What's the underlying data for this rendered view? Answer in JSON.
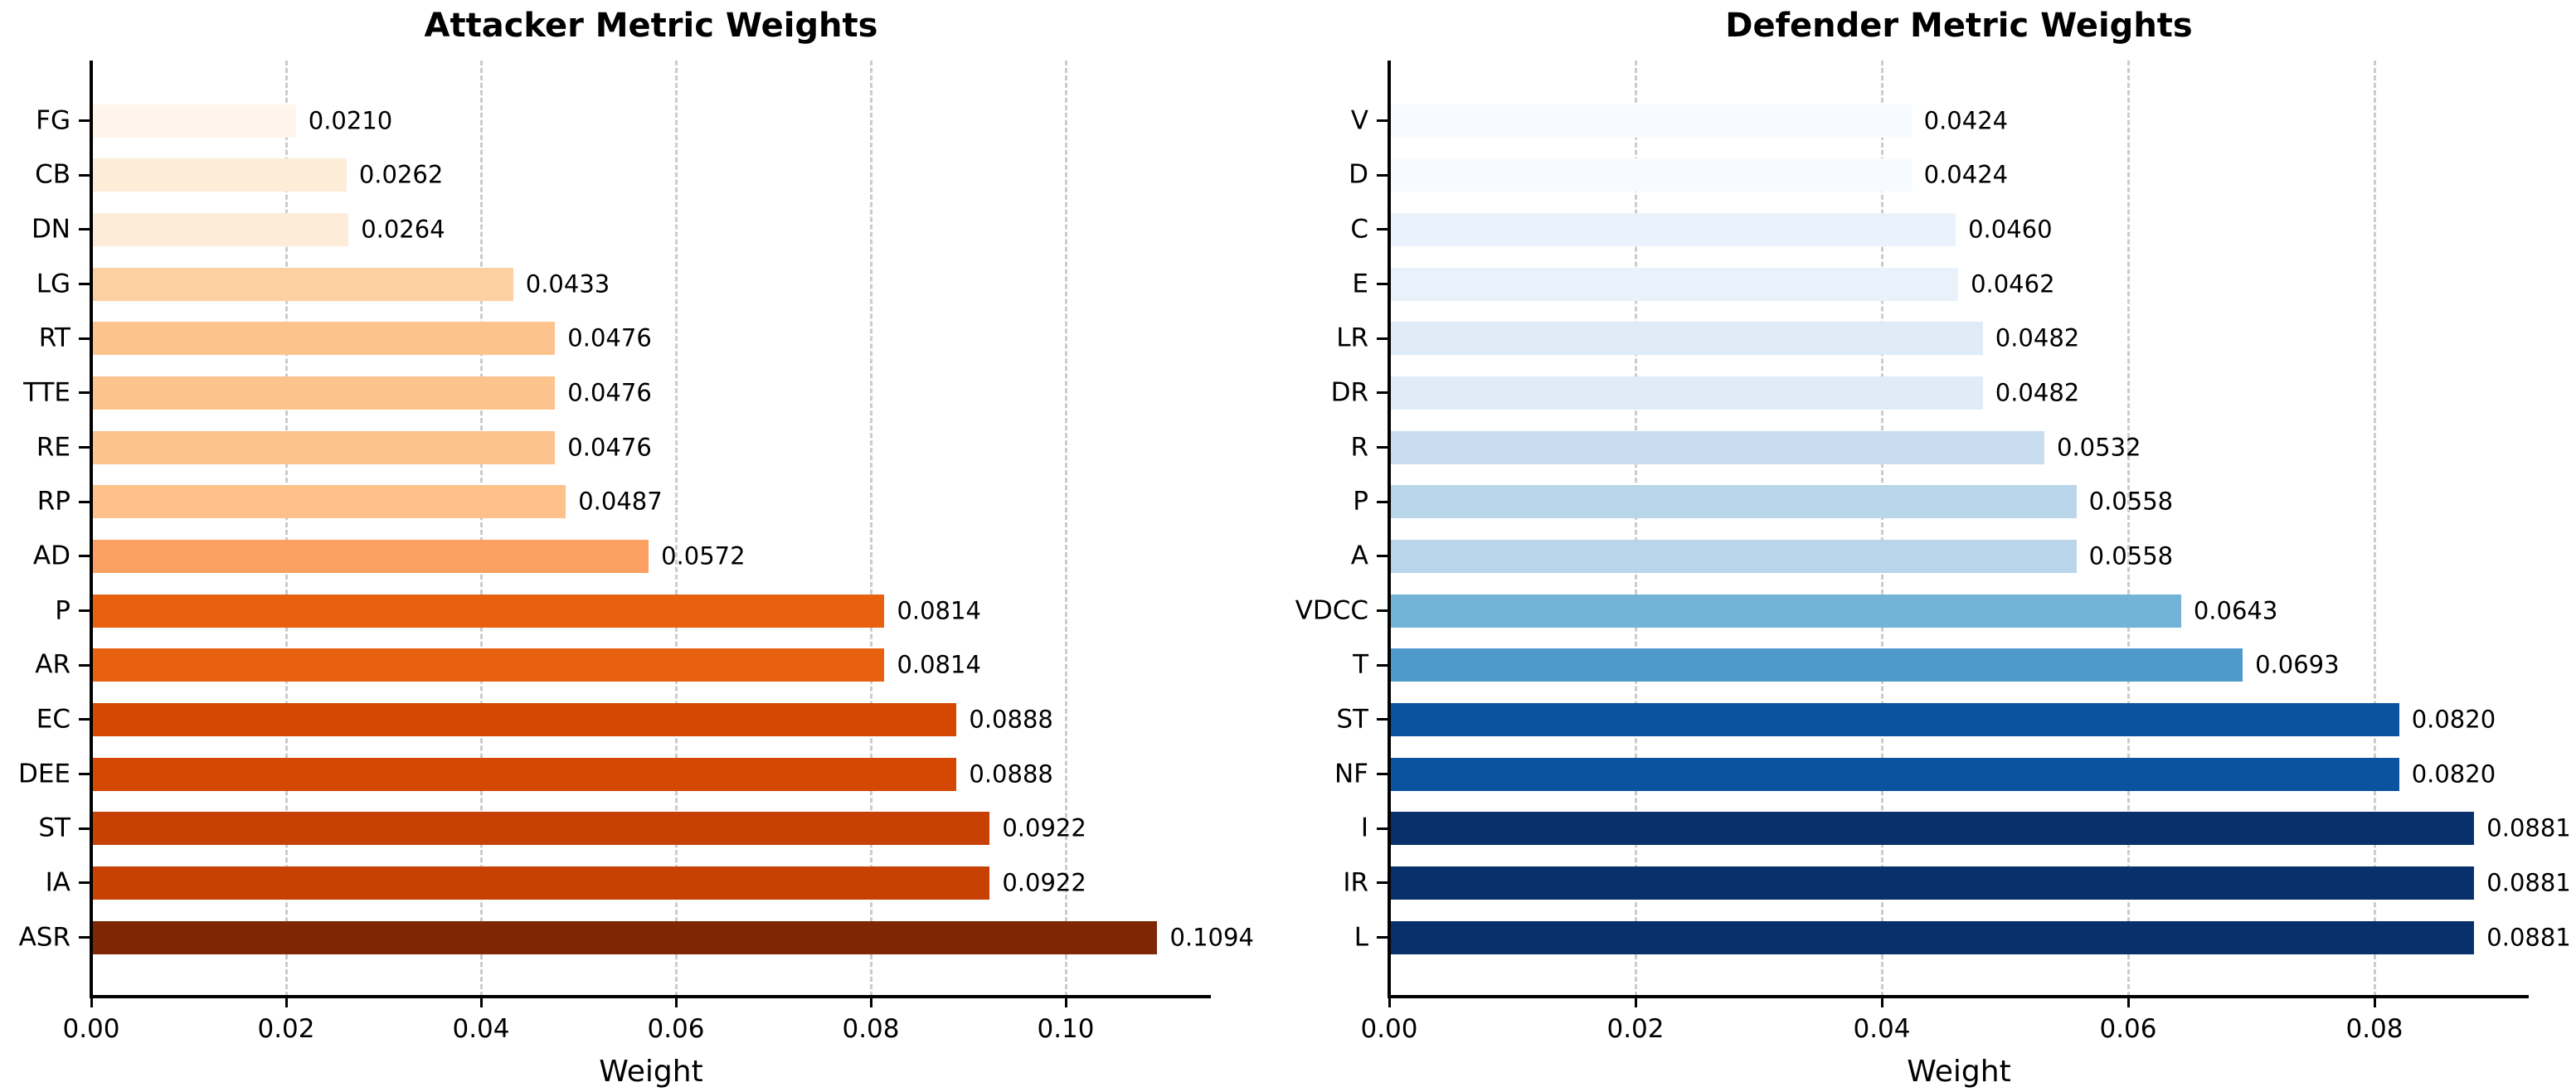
{
  "figure_background": "#ffffff",
  "text_color": "#000000",
  "gridline_color": "#cccccc",
  "axis_color": "#000000",
  "chart_data": [
    {
      "type": "bar",
      "orientation": "horizontal",
      "title": "Attacker Metric Weights",
      "xlabel": "Weight",
      "ylabel": "",
      "colormap": "Oranges",
      "grid": true,
      "legend_position": "none",
      "categories": [
        "FG",
        "CB",
        "DN",
        "LG",
        "RT",
        "TTE",
        "RE",
        "RP",
        "AD",
        "P",
        "AR",
        "EC",
        "DEE",
        "ST",
        "IA",
        "ASR"
      ],
      "values": [
        0.021,
        0.0262,
        0.0264,
        0.0433,
        0.0476,
        0.0476,
        0.0476,
        0.0487,
        0.0572,
        0.0814,
        0.0814,
        0.0888,
        0.0888,
        0.0922,
        0.0922,
        0.1094
      ],
      "value_labels": [
        "0.0210",
        "0.0262",
        "0.0264",
        "0.0433",
        "0.0476",
        "0.0476",
        "0.0476",
        "0.0487",
        "0.0572",
        "0.0814",
        "0.0814",
        "0.0888",
        "0.0888",
        "0.0922",
        "0.0922",
        "0.1094"
      ],
      "bar_colors": [
        "#fff5eb",
        "#fdecd8",
        "#fdecd7",
        "#fdd0a2",
        "#fdc38d",
        "#fdc38d",
        "#fdc38d",
        "#fdc189",
        "#fda162",
        "#e8610f",
        "#e8610f",
        "#d54802",
        "#d54802",
        "#c64103",
        "#c64103",
        "#7f2704"
      ],
      "x_tick_labels": [
        "0.00",
        "0.02",
        "0.04",
        "0.06",
        "0.08",
        "0.10"
      ],
      "x_tick_values": [
        0,
        0.02,
        0.04,
        0.06,
        0.08,
        0.1
      ],
      "xlim": [
        0,
        0.1149
      ]
    },
    {
      "type": "bar",
      "orientation": "horizontal",
      "title": "Defender Metric Weights",
      "xlabel": "Weight",
      "ylabel": "",
      "colormap": "Blues",
      "grid": true,
      "legend_position": "none",
      "categories": [
        "V",
        "D",
        "C",
        "E",
        "LR",
        "DR",
        "R",
        "P",
        "A",
        "VDCC",
        "T",
        "ST",
        "NF",
        "I",
        "IR",
        "L"
      ],
      "values": [
        0.0424,
        0.0424,
        0.046,
        0.0462,
        0.0482,
        0.0482,
        0.0532,
        0.0558,
        0.0558,
        0.0643,
        0.0693,
        0.082,
        0.082,
        0.0881,
        0.0881,
        0.0881
      ],
      "value_labels": [
        "0.0424",
        "0.0424",
        "0.0460",
        "0.0462",
        "0.0482",
        "0.0482",
        "0.0532",
        "0.0558",
        "0.0558",
        "0.0643",
        "0.0693",
        "0.0820",
        "0.0820",
        "0.0881",
        "0.0881",
        "0.0881"
      ],
      "bar_colors": [
        "#f7fbff",
        "#f7fbff",
        "#eaf2fb",
        "#e9f2fa",
        "#dfebf7",
        "#dfebf7",
        "#c9ddf0",
        "#b8d5ea",
        "#b8d5ea",
        "#73b3d8",
        "#4e9acb",
        "#0a539e",
        "#0a539e",
        "#08306b",
        "#08306b",
        "#08306b"
      ],
      "x_tick_labels": [
        "0.00",
        "0.02",
        "0.04",
        "0.06",
        "0.08"
      ],
      "x_tick_values": [
        0,
        0.02,
        0.04,
        0.06,
        0.08
      ],
      "xlim": [
        0,
        0.0925
      ]
    }
  ]
}
